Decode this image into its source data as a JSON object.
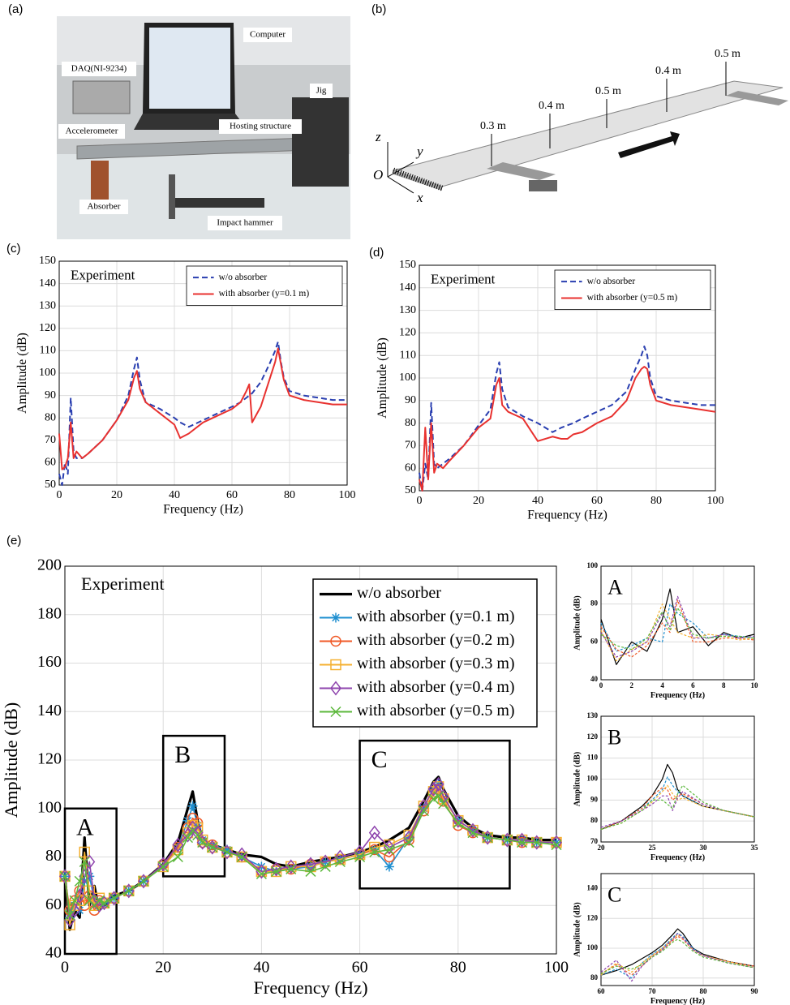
{
  "panel_labels": [
    "(a)",
    "(b)",
    "(c)",
    "(d)",
    "(e)"
  ],
  "photo": {
    "labels": [
      "Computer",
      "DAQ(NI-9234)",
      "Jig",
      "Accelerometer",
      "Hosting structure",
      "Absorber",
      "Impact hammer"
    ]
  },
  "diagram": {
    "distances": [
      "0.3 m",
      "0.4 m",
      "0.5 m",
      "0.4 m",
      "0.5 m"
    ],
    "axes": [
      "z",
      "y",
      "O",
      "x"
    ]
  },
  "chart_data": [
    {
      "type": "line",
      "annotation": "Experiment",
      "xlabel": "Frequency (Hz)",
      "ylabel": "Amplitude (dB)",
      "xlim": [
        0,
        100
      ],
      "ylim": [
        50,
        150
      ],
      "xticks": [
        0,
        20,
        40,
        60,
        80,
        100
      ],
      "yticks": [
        50,
        60,
        70,
        80,
        90,
        100,
        110,
        120,
        130,
        140,
        150
      ],
      "grid": true,
      "legend": "upper right",
      "x": [
        0,
        1,
        2,
        3,
        4,
        5,
        6,
        8,
        10,
        15,
        20,
        24,
        26,
        27,
        28,
        30,
        35,
        40,
        42,
        45,
        50,
        55,
        60,
        63,
        65,
        66,
        67,
        70,
        73,
        75,
        76,
        77,
        78,
        80,
        85,
        90,
        95,
        100
      ],
      "series": [
        {
          "name": "w/o absorber",
          "color": "#2a3fb0",
          "linestyle": "dashed",
          "values": [
            55,
            50,
            60,
            55,
            89,
            65,
            62,
            62,
            64,
            70,
            79,
            90,
            102,
            107,
            97,
            87,
            84,
            80,
            78,
            76,
            79,
            82,
            85,
            87,
            89,
            90,
            91,
            96,
            104,
            110,
            114,
            105,
            98,
            92,
            90,
            89,
            88,
            88
          ]
        },
        {
          "name": "with absorber (y=0.1 m)",
          "color": "#e8312f",
          "linestyle": "solid",
          "values": [
            73,
            57,
            58,
            62,
            78,
            62,
            65,
            62,
            64,
            70,
            79,
            88,
            98,
            101,
            93,
            87,
            82,
            77,
            71,
            73,
            78,
            81,
            84,
            87,
            92,
            95,
            78,
            85,
            97,
            105,
            111,
            104,
            97,
            90,
            88,
            87,
            86,
            86
          ]
        }
      ]
    },
    {
      "type": "line",
      "annotation": "Experiment",
      "xlabel": "Frequency (Hz)",
      "ylabel": "Amplitude (dB)",
      "xlim": [
        0,
        100
      ],
      "ylim": [
        50,
        150
      ],
      "xticks": [
        0,
        20,
        40,
        60,
        80,
        100
      ],
      "yticks": [
        50,
        60,
        70,
        80,
        90,
        100,
        110,
        120,
        130,
        140,
        150
      ],
      "grid": true,
      "legend": "upper right",
      "x": [
        0,
        1,
        2,
        3,
        4,
        5,
        6,
        8,
        10,
        15,
        20,
        24,
        26,
        27,
        28,
        30,
        35,
        40,
        45,
        48,
        50,
        52,
        55,
        60,
        65,
        70,
        73,
        75,
        76,
        77,
        78,
        80,
        85,
        90,
        95,
        100
      ],
      "series": [
        {
          "name": "w/o absorber",
          "color": "#2a3fb0",
          "linestyle": "dashed",
          "values": [
            58,
            50,
            62,
            55,
            89,
            62,
            60,
            62,
            64,
            70,
            79,
            86,
            102,
            107,
            95,
            87,
            83,
            80,
            76,
            78,
            79,
            80,
            82,
            85,
            88,
            94,
            104,
            110,
            114,
            110,
            100,
            92,
            90,
            89,
            88,
            88
          ]
        },
        {
          "name": "with absorber (y=0.5 m)",
          "color": "#e8312f",
          "linestyle": "solid",
          "values": [
            55,
            50,
            78,
            55,
            80,
            58,
            62,
            60,
            63,
            70,
            78,
            82,
            97,
            100,
            88,
            85,
            82,
            72,
            74,
            73,
            73,
            75,
            76,
            80,
            83,
            90,
            100,
            104,
            105,
            104,
            97,
            90,
            88,
            87,
            86,
            85
          ]
        }
      ]
    },
    {
      "type": "line",
      "annotation": "Experiment",
      "xlabel": "Frequency (Hz)",
      "ylabel": "Amplitude (dB)",
      "xlim": [
        0,
        100
      ],
      "ylim": [
        40,
        200
      ],
      "xticks": [
        0,
        20,
        40,
        60,
        80,
        100
      ],
      "yticks": [
        40,
        60,
        80,
        100,
        120,
        140,
        160,
        180,
        200
      ],
      "grid": true,
      "legend": "upper right",
      "regions": [
        {
          "label": "A",
          "x": [
            0,
            10.5
          ],
          "y": [
            40,
            100
          ]
        },
        {
          "label": "B",
          "x": [
            20,
            32.5
          ],
          "y": [
            72,
            130
          ]
        },
        {
          "label": "C",
          "x": [
            60,
            90.5
          ],
          "y": [
            67,
            128
          ]
        }
      ],
      "x": [
        0,
        1,
        2,
        3,
        4,
        5,
        6,
        7,
        8,
        10,
        13,
        16,
        20,
        23,
        25,
        26,
        27,
        28,
        30,
        33,
        36,
        40,
        43,
        46,
        50,
        53,
        56,
        60,
        63,
        66,
        70,
        73,
        75,
        76,
        77,
        80,
        83,
        86,
        90,
        93,
        96,
        100
      ],
      "series": [
        {
          "name": "w/o absorber",
          "color": "#000000",
          "linestyle": "solid",
          "values": [
            72,
            50,
            58,
            55,
            88,
            60,
            68,
            58,
            60,
            64,
            66,
            70,
            77,
            86,
            100,
            107,
            95,
            87,
            85,
            83,
            81,
            80,
            77,
            76,
            78,
            79,
            80,
            82,
            84,
            87,
            92,
            103,
            111,
            113,
            108,
            97,
            92,
            89,
            88,
            88,
            87,
            87
          ]
        },
        {
          "name": "with absorber (y=0.1 m)",
          "color": "#1f8fd0",
          "linestyle": "solid",
          "marker": "*",
          "values": [
            72,
            55,
            60,
            58,
            70,
            72,
            62,
            60,
            61,
            63,
            66,
            70,
            76,
            84,
            95,
            101,
            93,
            87,
            85,
            83,
            80,
            76,
            74,
            75,
            76,
            78,
            79,
            81,
            83,
            76,
            88,
            100,
            108,
            110,
            104,
            95,
            91,
            88,
            87,
            87,
            86,
            86
          ]
        },
        {
          "name": "with absorber (y=0.2 m)",
          "color": "#f05a28",
          "linestyle": "solid",
          "marker": "o",
          "values": [
            72,
            58,
            62,
            66,
            60,
            64,
            58,
            62,
            61,
            63,
            66,
            70,
            77,
            84,
            92,
            96,
            94,
            86,
            85,
            82,
            80,
            74,
            75,
            75,
            77,
            78,
            79,
            81,
            83,
            80,
            87,
            99,
            106,
            108,
            103,
            93,
            90,
            88,
            87,
            86,
            86,
            86
          ]
        },
        {
          "name": "with absorber (y=0.3 m)",
          "color": "#f5b030",
          "linestyle": "solid",
          "marker": "s",
          "values": [
            72,
            52,
            60,
            62,
            82,
            66,
            60,
            63,
            61,
            63,
            66,
            70,
            76,
            83,
            90,
            93,
            92,
            87,
            84,
            82,
            80,
            74,
            74,
            76,
            76,
            78,
            79,
            81,
            84,
            85,
            89,
            101,
            107,
            109,
            104,
            95,
            91,
            88,
            87,
            87,
            86,
            86
          ]
        },
        {
          "name": "with absorber (y=0.4 m)",
          "color": "#8e44ad",
          "linestyle": "solid",
          "marker": "d",
          "values": [
            72,
            54,
            58,
            64,
            72,
            78,
            62,
            60,
            61,
            63,
            66,
            70,
            77,
            85,
            89,
            92,
            90,
            86,
            84,
            82,
            81,
            74,
            75,
            76,
            77,
            78,
            80,
            82,
            90,
            84,
            88,
            101,
            108,
            110,
            105,
            95,
            91,
            88,
            87,
            87,
            86,
            86
          ]
        },
        {
          "name": "with absorber (y=0.5 m)",
          "color": "#5cb83c",
          "linestyle": "solid",
          "marker": "x",
          "values": [
            72,
            56,
            62,
            70,
            78,
            62,
            60,
            62,
            61,
            63,
            66,
            70,
            76,
            80,
            88,
            91,
            89,
            86,
            84,
            82,
            80,
            73,
            74,
            75,
            74,
            76,
            78,
            80,
            82,
            83,
            86,
            99,
            104,
            105,
            102,
            94,
            90,
            88,
            87,
            86,
            86,
            85
          ]
        }
      ]
    },
    {
      "type": "line",
      "annotation": "A",
      "xlabel": "Frequency (Hz)",
      "ylabel": "Amplitude (dB)",
      "xlim": [
        0,
        10
      ],
      "ylim": [
        40,
        100
      ],
      "xticks": [
        0,
        2,
        4,
        6,
        8,
        10
      ],
      "yticks": [
        40,
        60,
        80,
        100
      ],
      "grid": true,
      "x": [
        0,
        1,
        2,
        3,
        4,
        4.5,
        5,
        6,
        7,
        8,
        9,
        10
      ],
      "series": [
        {
          "color": "#000000",
          "linestyle": "solid",
          "values": [
            72,
            48,
            60,
            55,
            72,
            88,
            65,
            68,
            58,
            65,
            62,
            64
          ]
        },
        {
          "color": "#1f8fd0",
          "linestyle": "dashed",
          "values": [
            70,
            55,
            58,
            62,
            60,
            80,
            75,
            70,
            62,
            64,
            63,
            62
          ]
        },
        {
          "color": "#f05a28",
          "linestyle": "dashed",
          "values": [
            68,
            56,
            52,
            58,
            70,
            65,
            82,
            60,
            60,
            62,
            62,
            61
          ]
        },
        {
          "color": "#f5b030",
          "linestyle": "dashed",
          "values": [
            66,
            50,
            56,
            60,
            80,
            72,
            65,
            62,
            64,
            63,
            61,
            62
          ]
        },
        {
          "color": "#8e44ad",
          "linestyle": "dashed",
          "values": [
            65,
            52,
            55,
            60,
            75,
            68,
            84,
            62,
            62,
            64,
            62,
            63
          ]
        },
        {
          "color": "#5cb83c",
          "linestyle": "dashed",
          "values": [
            64,
            58,
            56,
            62,
            76,
            66,
            78,
            64,
            62,
            63,
            63,
            62
          ]
        }
      ]
    },
    {
      "type": "line",
      "annotation": "B",
      "xlabel": "Frequency (Hz)",
      "ylabel": "Amplitude (dB)",
      "xlim": [
        20,
        35
      ],
      "ylim": [
        70,
        130
      ],
      "xticks": [
        20,
        25,
        30,
        35
      ],
      "yticks": [
        70,
        80,
        90,
        100,
        110,
        120,
        130
      ],
      "grid": true,
      "x": [
        20,
        22,
        24,
        25,
        26,
        26.5,
        27,
        27.5,
        28,
        30,
        32,
        35
      ],
      "series": [
        {
          "color": "#000000",
          "linestyle": "solid",
          "values": [
            76,
            80,
            87,
            92,
            100,
            107,
            103,
            95,
            92,
            87,
            85,
            82
          ]
        },
        {
          "color": "#1f8fd0",
          "linestyle": "dashed",
          "values": [
            76,
            80,
            86,
            90,
            95,
            101,
            97,
            94,
            92,
            87,
            85,
            82
          ]
        },
        {
          "color": "#f05a28",
          "linestyle": "dashed",
          "values": [
            76,
            80,
            86,
            92,
            96,
            95,
            90,
            92,
            93,
            88,
            85,
            82
          ]
        },
        {
          "color": "#f5b030",
          "linestyle": "dashed",
          "values": [
            76,
            79,
            85,
            89,
            94,
            97,
            93,
            90,
            91,
            87,
            85,
            82
          ]
        },
        {
          "color": "#8e44ad",
          "linestyle": "dashed",
          "values": [
            77,
            80,
            85,
            88,
            92,
            92,
            85,
            91,
            94,
            88,
            85,
            82
          ]
        },
        {
          "color": "#5cb83c",
          "linestyle": "dashed",
          "values": [
            76,
            79,
            85,
            90,
            90,
            88,
            86,
            93,
            97,
            89,
            85,
            82
          ]
        }
      ]
    },
    {
      "type": "line",
      "annotation": "C",
      "xlabel": "Frequency (Hz)",
      "ylabel": "Amplitude (dB)",
      "xlim": [
        60,
        90
      ],
      "ylim": [
        75,
        150
      ],
      "xticks": [
        60,
        70,
        80,
        90
      ],
      "yticks": [
        80,
        100,
        120,
        140
      ],
      "grid": true,
      "x": [
        60,
        63,
        66,
        68,
        70,
        72,
        74,
        75,
        76,
        78,
        80,
        85,
        90
      ],
      "series": [
        {
          "color": "#000000",
          "linestyle": "solid",
          "values": [
            82,
            85,
            89,
            93,
            97,
            102,
            109,
            113,
            110,
            100,
            96,
            91,
            88
          ]
        },
        {
          "color": "#1f8fd0",
          "linestyle": "dashed",
          "values": [
            82,
            86,
            80,
            90,
            96,
            100,
            107,
            110,
            108,
            100,
            95,
            91,
            88
          ]
        },
        {
          "color": "#f05a28",
          "linestyle": "dashed",
          "values": [
            83,
            89,
            82,
            88,
            95,
            99,
            105,
            108,
            106,
            99,
            95,
            91,
            88
          ]
        },
        {
          "color": "#f5b030",
          "linestyle": "dashed",
          "values": [
            82,
            90,
            84,
            90,
            95,
            100,
            106,
            109,
            107,
            99,
            95,
            91,
            87
          ]
        },
        {
          "color": "#8e44ad",
          "linestyle": "dashed",
          "values": [
            84,
            92,
            78,
            88,
            94,
            99,
            106,
            110,
            107,
            99,
            95,
            90,
            87
          ]
        },
        {
          "color": "#5cb83c",
          "linestyle": "dashed",
          "values": [
            83,
            88,
            86,
            89,
            94,
            98,
            104,
            106,
            104,
            98,
            94,
            90,
            87
          ]
        }
      ]
    }
  ]
}
